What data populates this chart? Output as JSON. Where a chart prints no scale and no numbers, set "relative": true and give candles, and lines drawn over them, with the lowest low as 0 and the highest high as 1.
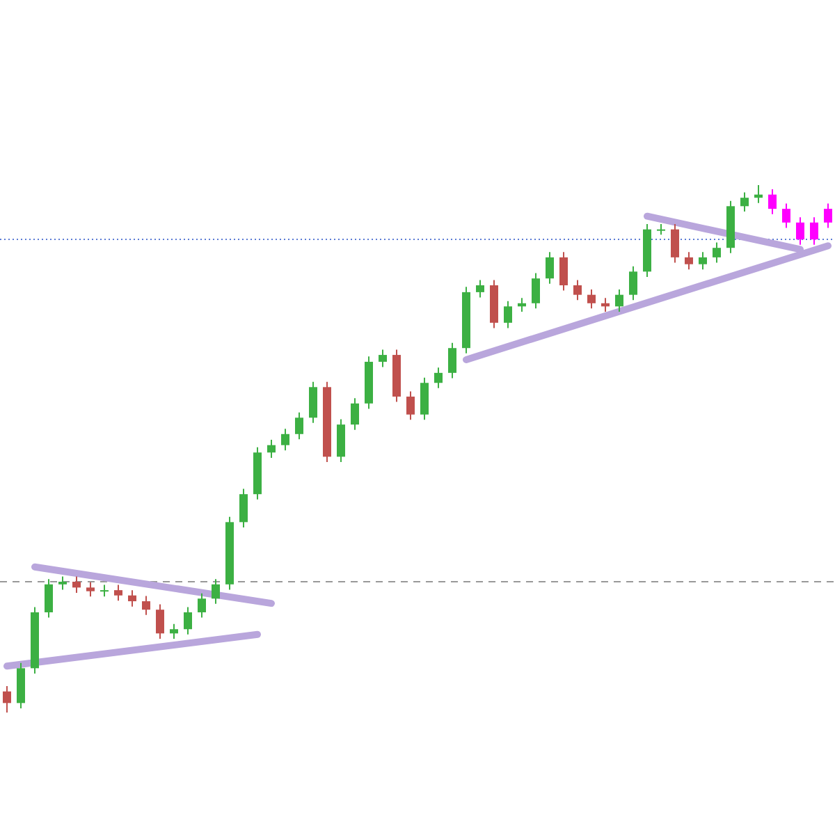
{
  "chart_data": {
    "type": "candlestick",
    "relative": true,
    "categories": [
      null,
      null,
      null,
      null,
      null,
      null,
      null,
      null,
      null,
      null,
      null,
      null,
      null,
      null,
      null,
      null,
      null,
      null,
      null,
      null,
      null,
      null,
      null,
      null,
      null,
      null,
      null,
      null,
      null,
      null,
      null,
      null,
      null,
      null,
      null,
      null,
      null,
      null,
      null,
      null,
      null,
      null,
      null,
      null,
      null,
      null,
      null,
      null,
      null,
      null,
      null,
      null,
      null,
      null,
      null,
      null,
      null,
      null,
      null,
      null
    ],
    "ohlc": [
      [
        0.04,
        0.05,
        0,
        0.018
      ],
      [
        0.018,
        0.094,
        0.008,
        0.084
      ],
      [
        0.084,
        0.2,
        0.074,
        0.19
      ],
      [
        0.19,
        0.253,
        0.18,
        0.243
      ],
      [
        0.243,
        0.258,
        0.233,
        0.248
      ],
      [
        0.248,
        0.258,
        0.227,
        0.237
      ],
      [
        0.237,
        0.247,
        0.22,
        0.23
      ],
      [
        0.23,
        0.242,
        0.22,
        0.232
      ],
      [
        0.232,
        0.242,
        0.212,
        0.222
      ],
      [
        0.222,
        0.232,
        0.201,
        0.211
      ],
      [
        0.211,
        0.221,
        0.185,
        0.195
      ],
      [
        0.195,
        0.205,
        0.14,
        0.15
      ],
      [
        0.15,
        0.168,
        0.14,
        0.158
      ],
      [
        0.158,
        0.2,
        0.148,
        0.19
      ],
      [
        0.19,
        0.226,
        0.18,
        0.216
      ],
      [
        0.216,
        0.253,
        0.206,
        0.243
      ],
      [
        0.243,
        0.371,
        0.233,
        0.361
      ],
      [
        0.361,
        0.424,
        0.351,
        0.414
      ],
      [
        0.414,
        0.503,
        0.404,
        0.493
      ],
      [
        0.493,
        0.517,
        0.483,
        0.507
      ],
      [
        0.507,
        0.538,
        0.497,
        0.528
      ],
      [
        0.528,
        0.569,
        0.518,
        0.559
      ],
      [
        0.559,
        0.627,
        0.549,
        0.617
      ],
      [
        0.617,
        0.627,
        0.475,
        0.485
      ],
      [
        0.485,
        0.556,
        0.475,
        0.546
      ],
      [
        0.546,
        0.596,
        0.536,
        0.586
      ],
      [
        0.586,
        0.675,
        0.576,
        0.665
      ],
      [
        0.665,
        0.688,
        0.655,
        0.678
      ],
      [
        0.678,
        0.688,
        0.589,
        0.599
      ],
      [
        0.599,
        0.609,
        0.555,
        0.565
      ],
      [
        0.565,
        0.635,
        0.555,
        0.625
      ],
      [
        0.625,
        0.654,
        0.615,
        0.644
      ],
      [
        0.644,
        0.701,
        0.634,
        0.691
      ],
      [
        0.691,
        0.807,
        0.681,
        0.797
      ],
      [
        0.797,
        0.82,
        0.787,
        0.81
      ],
      [
        0.81,
        0.82,
        0.729,
        0.739
      ],
      [
        0.739,
        0.78,
        0.729,
        0.77
      ],
      [
        0.77,
        0.786,
        0.76,
        0.776
      ],
      [
        0.776,
        0.833,
        0.766,
        0.823
      ],
      [
        0.823,
        0.873,
        0.813,
        0.863
      ],
      [
        0.863,
        0.873,
        0.8,
        0.81
      ],
      [
        0.81,
        0.82,
        0.782,
        0.792
      ],
      [
        0.792,
        0.802,
        0.766,
        0.776
      ],
      [
        0.776,
        0.786,
        0.76,
        0.77
      ],
      [
        0.77,
        0.802,
        0.76,
        0.792
      ],
      [
        0.792,
        0.846,
        0.782,
        0.836
      ],
      [
        0.836,
        0.926,
        0.826,
        0.916
      ],
      [
        0.916,
        0.926,
        0.906,
        0.916
      ],
      [
        0.916,
        0.926,
        0.853,
        0.863
      ],
      [
        0.863,
        0.873,
        0.84,
        0.85
      ],
      [
        0.85,
        0.873,
        0.84,
        0.863
      ],
      [
        0.863,
        0.891,
        0.853,
        0.881
      ],
      [
        0.881,
        0.97,
        0.871,
        0.96
      ],
      [
        0.96,
        0.986,
        0.95,
        0.976
      ],
      [
        0.976,
        1,
        0.966,
        0.982
      ],
      [
        0.982,
        0.992,
        0.945,
        0.955
      ],
      [
        0.955,
        0.965,
        0.919,
        0.929
      ],
      [
        0.929,
        0.939,
        0.887,
        0.897
      ],
      [
        0.897,
        0.939,
        0.887,
        0.929
      ],
      [
        0.929,
        0.965,
        0.919,
        0.955
      ]
    ],
    "colors": [
      "#c0504d",
      "#3cb043",
      "#3cb043",
      "#3cb043",
      "#3cb043",
      "#c0504d",
      "#c0504d",
      "#3cb043",
      "#c0504d",
      "#c0504d",
      "#c0504d",
      "#c0504d",
      "#3cb043",
      "#3cb043",
      "#3cb043",
      "#3cb043",
      "#3cb043",
      "#3cb043",
      "#3cb043",
      "#3cb043",
      "#3cb043",
      "#3cb043",
      "#3cb043",
      "#c0504d",
      "#3cb043",
      "#3cb043",
      "#3cb043",
      "#3cb043",
      "#c0504d",
      "#c0504d",
      "#3cb043",
      "#3cb043",
      "#3cb043",
      "#3cb043",
      "#3cb043",
      "#c0504d",
      "#3cb043",
      "#3cb043",
      "#3cb043",
      "#3cb043",
      "#c0504d",
      "#c0504d",
      "#c0504d",
      "#c0504d",
      "#3cb043",
      "#3cb043",
      "#3cb043",
      "#3cb043",
      "#c0504d",
      "#c0504d",
      "#3cb043",
      "#3cb043",
      "#3cb043",
      "#3cb043",
      "#3cb043",
      "#ff00ff",
      "#ff00ff",
      "#ff00ff",
      "#ff00ff",
      "#ff00ff"
    ],
    "series": [
      {
        "type": "line",
        "color": "#b9a6dc",
        "values": [
          null,
          null,
          0.276,
          null,
          null,
          null,
          null,
          null,
          null,
          null,
          null,
          null,
          null,
          null,
          null,
          null,
          null,
          null,
          null,
          0.207,
          null,
          null,
          null,
          null,
          null,
          null,
          null,
          null,
          null,
          null,
          null,
          null,
          null,
          null,
          null,
          null,
          null,
          null,
          null,
          null,
          null,
          null,
          null,
          null,
          null,
          null,
          null,
          null,
          null,
          null,
          null,
          null,
          null,
          null,
          null,
          null,
          null,
          null,
          null,
          null
        ]
      },
      {
        "type": "line",
        "color": "#b9a6dc",
        "values": [
          0.088,
          null,
          null,
          null,
          null,
          null,
          null,
          null,
          null,
          null,
          null,
          null,
          null,
          null,
          null,
          null,
          null,
          null,
          0.148,
          null,
          null,
          null,
          null,
          null,
          null,
          null,
          null,
          null,
          null,
          null,
          null,
          null,
          null,
          null,
          null,
          null,
          null,
          null,
          null,
          null,
          null,
          null,
          null,
          null,
          null,
          null,
          null,
          null,
          null,
          null,
          null,
          null,
          null,
          null,
          null,
          null,
          null,
          null,
          null,
          null
        ]
      },
      {
        "type": "line",
        "color": "#b9a6dc",
        "values": [
          null,
          null,
          null,
          null,
          null,
          null,
          null,
          null,
          null,
          null,
          null,
          null,
          null,
          null,
          null,
          null,
          null,
          null,
          null,
          null,
          null,
          null,
          null,
          null,
          null,
          null,
          null,
          null,
          null,
          null,
          null,
          null,
          null,
          0.669,
          null,
          null,
          null,
          null,
          null,
          null,
          null,
          null,
          null,
          null,
          null,
          null,
          null,
          null,
          null,
          null,
          null,
          null,
          null,
          null,
          null,
          null,
          null,
          null,
          null,
          0.885
        ]
      },
      {
        "type": "line",
        "color": "#b9a6dc",
        "values": [
          null,
          null,
          null,
          null,
          null,
          null,
          null,
          null,
          null,
          null,
          null,
          null,
          null,
          null,
          null,
          null,
          null,
          null,
          null,
          null,
          null,
          null,
          null,
          null,
          null,
          null,
          null,
          null,
          null,
          null,
          null,
          null,
          null,
          null,
          null,
          null,
          null,
          null,
          null,
          null,
          null,
          null,
          null,
          null,
          null,
          null,
          0.941,
          null,
          null,
          null,
          null,
          null,
          null,
          null,
          null,
          null,
          null,
          0.878,
          null,
          null
        ]
      }
    ],
    "ref_lines": [
      {
        "axis": "y",
        "value": 0.897,
        "color": "#5b7bd5",
        "line_style": "dotted"
      },
      {
        "axis": "y",
        "value": 0.248,
        "color": "#999999",
        "line_style": "dashed"
      }
    ]
  }
}
